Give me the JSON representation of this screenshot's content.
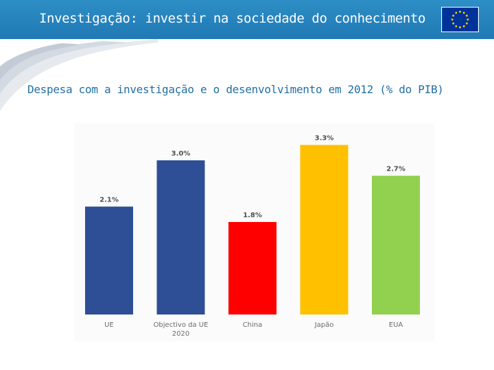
{
  "header": {
    "title": "Investigação: investir na sociedade do conhecimento",
    "logo_icon": "eu-flag-icon",
    "background_color": "#2a86c0"
  },
  "subtitle": "Despesa com a investigação e o desenvolvimento em 2012 (% do PIB)",
  "chart_data": {
    "type": "bar",
    "title": "Despesa com a investigação e o desenvolvimento em 2012 (% do PIB)",
    "categories": [
      "UE",
      "Objectivo da UE 2020",
      "China",
      "Japão",
      "EUA"
    ],
    "category_lines": [
      [
        "UE"
      ],
      [
        "Objectivo da UE",
        "2020"
      ],
      [
        "China"
      ],
      [
        "Japão"
      ],
      [
        "EUA"
      ]
    ],
    "values": [
      2.1,
      3.0,
      1.8,
      3.3,
      2.7
    ],
    "value_labels": [
      "2.1%",
      "3.0%",
      "1.8%",
      "3.3%",
      "2.7%"
    ],
    "colors": [
      "#2e4f96",
      "#2e4f96",
      "#ff0000",
      "#ffc000",
      "#92d050"
    ],
    "xlabel": "",
    "ylabel": "",
    "ylim": [
      0,
      3.5
    ],
    "grid": false,
    "legend": "none"
  }
}
